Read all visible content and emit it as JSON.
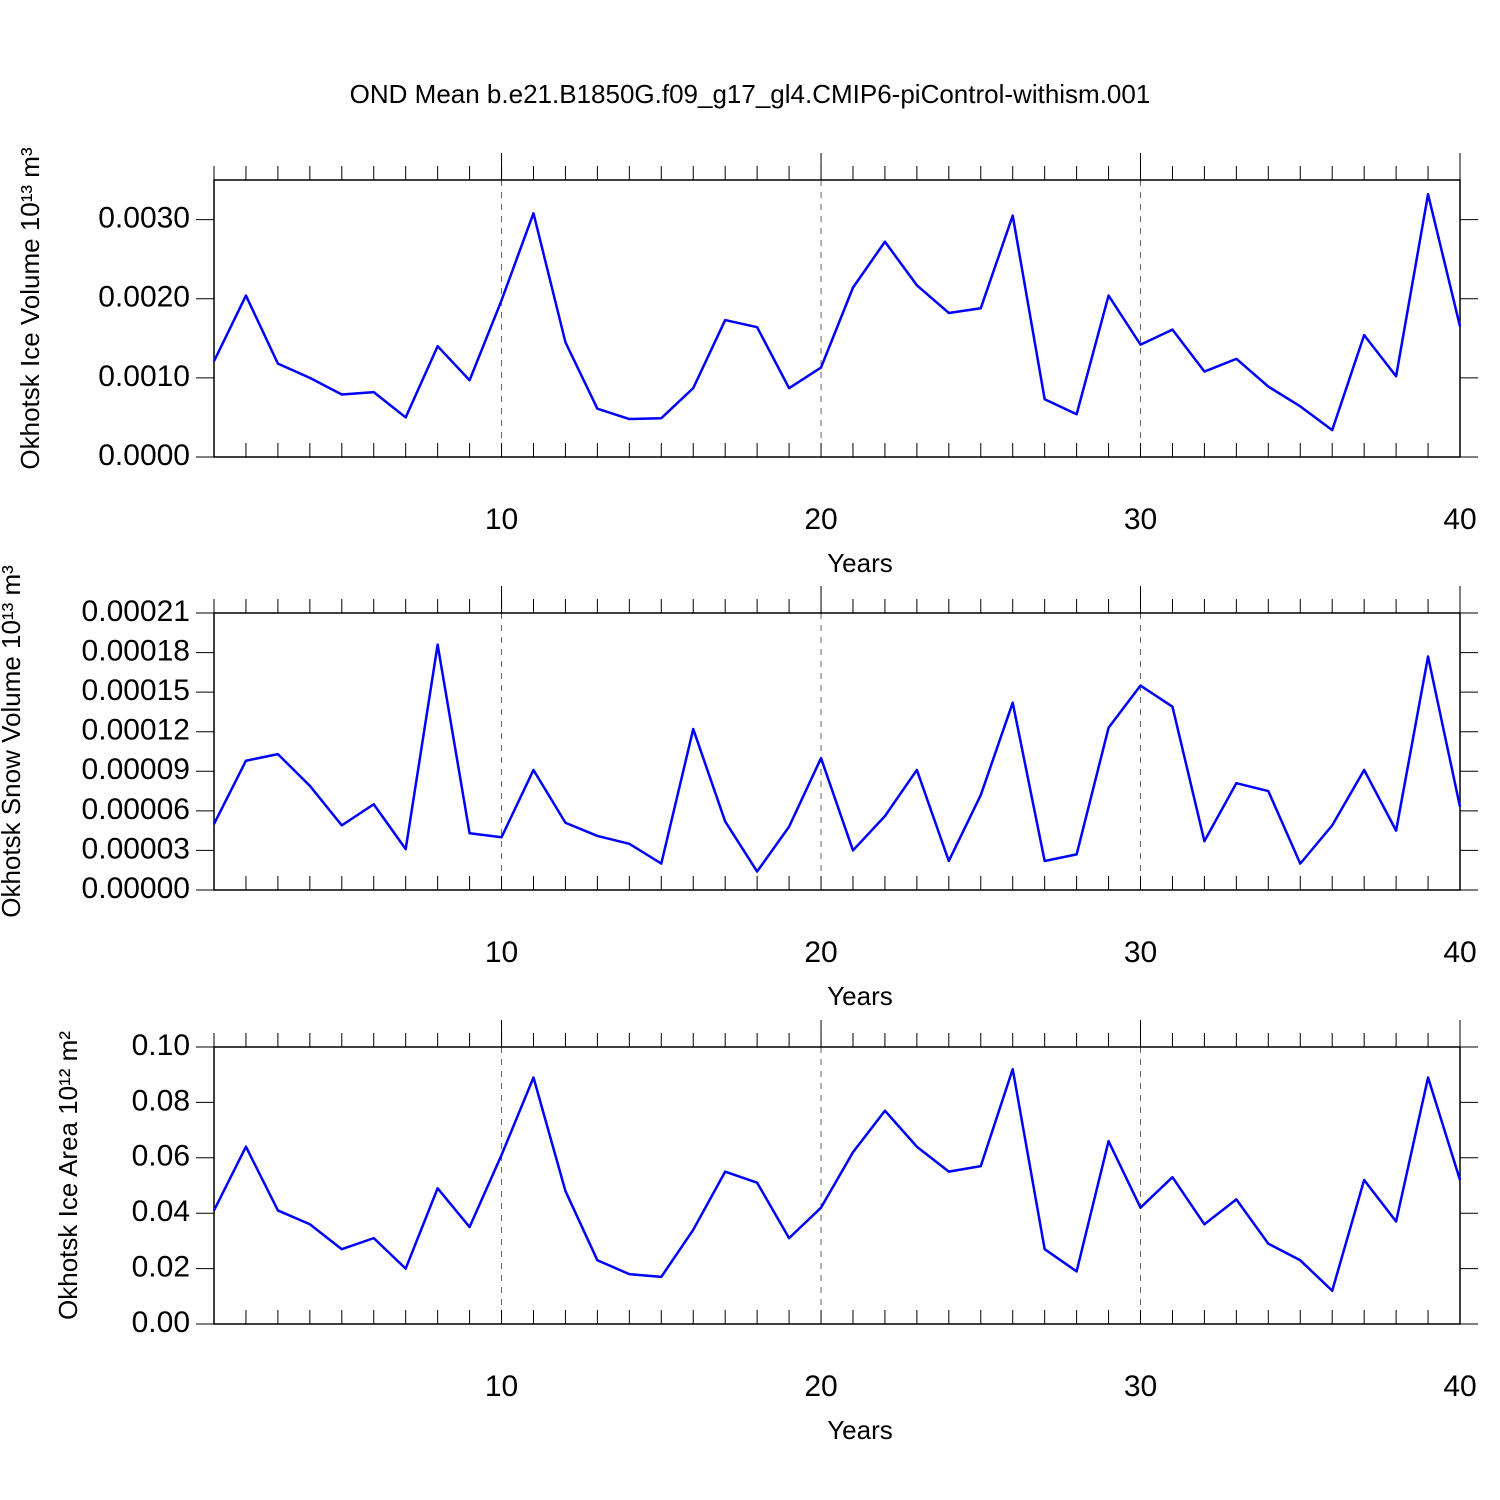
{
  "chart_data": [
    {
      "type": "line",
      "title": "OND Mean b.e21.B1850G.f09_g17_gl4.CMIP6-piControl-withism.001",
      "xlabel": "Years",
      "ylabel": "Okhotsk Ice Volume 10¹³ m³",
      "x": [
        1,
        2,
        3,
        4,
        5,
        6,
        7,
        8,
        9,
        10,
        11,
        12,
        13,
        14,
        15,
        16,
        17,
        18,
        19,
        20,
        21,
        22,
        23,
        24,
        25,
        26,
        27,
        28,
        29,
        30,
        31,
        32,
        33,
        34,
        35,
        36,
        37,
        38,
        39,
        40
      ],
      "xlim": [
        1,
        40
      ],
      "xticks": [
        10,
        20,
        30,
        40
      ],
      "ylim": [
        0,
        0.0035
      ],
      "yticks": [
        {
          "value": 0,
          "label": "0.0000"
        },
        {
          "value": 0.001,
          "label": "0.0010"
        },
        {
          "value": 0.002,
          "label": "0.0020"
        },
        {
          "value": 0.003,
          "label": "0.0030"
        }
      ],
      "grid": "x",
      "series": [
        {
          "color": "#0000ff",
          "values": [
            0.00121,
            0.00204,
            0.00118,
            0.001,
            0.00079,
            0.00082,
            0.0005,
            0.0014,
            0.00097,
            0.00198,
            0.00308,
            0.00145,
            0.00061,
            0.00048,
            0.00049,
            0.00087,
            0.00173,
            0.00164,
            0.00087,
            0.00113,
            0.00214,
            0.00272,
            0.00217,
            0.00182,
            0.00188,
            0.00305,
            0.00073,
            0.00054,
            0.00204,
            0.00142,
            0.00161,
            0.00108,
            0.00124,
            0.00089,
            0.00064,
            0.00034,
            0.00154,
            0.00102,
            0.00332,
            0.00165
          ]
        }
      ]
    },
    {
      "type": "line",
      "xlabel": "Years",
      "ylabel": "Okhotsk Snow Volume 10¹³ m³",
      "x": [
        1,
        2,
        3,
        4,
        5,
        6,
        7,
        8,
        9,
        10,
        11,
        12,
        13,
        14,
        15,
        16,
        17,
        18,
        19,
        20,
        21,
        22,
        23,
        24,
        25,
        26,
        27,
        28,
        29,
        30,
        31,
        32,
        33,
        34,
        35,
        36,
        37,
        38,
        39,
        40
      ],
      "xlim": [
        1,
        40
      ],
      "xticks": [
        10,
        20,
        30,
        40
      ],
      "ylim": [
        0,
        0.00021
      ],
      "yticks": [
        {
          "value": 0,
          "label": "0.00000"
        },
        {
          "value": 3e-05,
          "label": "0.00003"
        },
        {
          "value": 6e-05,
          "label": "0.00006"
        },
        {
          "value": 9e-05,
          "label": "0.00009"
        },
        {
          "value": 0.00012,
          "label": "0.00012"
        },
        {
          "value": 0.00015,
          "label": "0.00015"
        },
        {
          "value": 0.00018,
          "label": "0.00018"
        },
        {
          "value": 0.00021,
          "label": "0.00021"
        }
      ],
      "grid": "x",
      "series": [
        {
          "color": "#0000ff",
          "values": [
            5e-05,
            9.8e-05,
            0.000103,
            7.9e-05,
            4.9e-05,
            6.5e-05,
            3.1e-05,
            0.000186,
            4.3e-05,
            4e-05,
            9.1e-05,
            5.1e-05,
            4.1e-05,
            3.5e-05,
            2e-05,
            0.000122,
            5.2e-05,
            1.4e-05,
            4.8e-05,
            0.0001,
            3e-05,
            5.6e-05,
            9.1e-05,
            2.2e-05,
            7.2e-05,
            0.000142,
            2.2e-05,
            2.7e-05,
            0.000123,
            0.000155,
            0.000139,
            3.7e-05,
            8.1e-05,
            7.5e-05,
            2e-05,
            4.9e-05,
            9.1e-05,
            4.5e-05,
            0.000177,
            6.3e-05
          ]
        }
      ]
    },
    {
      "type": "line",
      "xlabel": "Years",
      "ylabel": "Okhotsk Ice Area 10¹² m²",
      "x": [
        1,
        2,
        3,
        4,
        5,
        6,
        7,
        8,
        9,
        10,
        11,
        12,
        13,
        14,
        15,
        16,
        17,
        18,
        19,
        20,
        21,
        22,
        23,
        24,
        25,
        26,
        27,
        28,
        29,
        30,
        31,
        32,
        33,
        34,
        35,
        36,
        37,
        38,
        39,
        40
      ],
      "xlim": [
        1,
        40
      ],
      "xticks": [
        10,
        20,
        30,
        40
      ],
      "ylim": [
        0,
        0.1
      ],
      "yticks": [
        {
          "value": 0,
          "label": "0.00"
        },
        {
          "value": 0.02,
          "label": "0.02"
        },
        {
          "value": 0.04,
          "label": "0.04"
        },
        {
          "value": 0.06,
          "label": "0.06"
        },
        {
          "value": 0.08,
          "label": "0.08"
        },
        {
          "value": 0.1,
          "label": "0.10"
        }
      ],
      "grid": "x",
      "series": [
        {
          "color": "#0000ff",
          "values": [
            0.041,
            0.064,
            0.041,
            0.036,
            0.027,
            0.031,
            0.02,
            0.049,
            0.035,
            0.061,
            0.089,
            0.048,
            0.023,
            0.018,
            0.017,
            0.034,
            0.055,
            0.051,
            0.031,
            0.042,
            0.062,
            0.077,
            0.064,
            0.055,
            0.057,
            0.092,
            0.027,
            0.019,
            0.066,
            0.042,
            0.053,
            0.036,
            0.045,
            0.029,
            0.023,
            0.012,
            0.052,
            0.037,
            0.089,
            0.052
          ]
        }
      ]
    }
  ]
}
